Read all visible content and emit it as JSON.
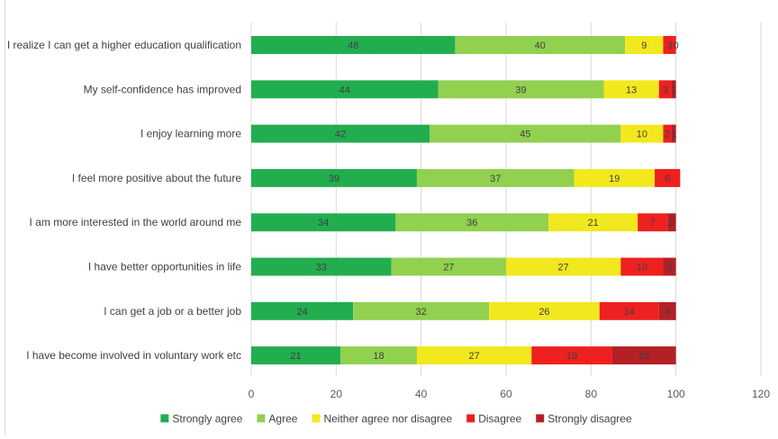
{
  "chart_data": {
    "type": "bar",
    "orientation": "horizontal",
    "stacked": true,
    "categories": [
      "I realize I can get a higher education qualification",
      "My self-confidence has improved",
      "I enjoy learning more",
      "I feel more positive about the future",
      "I am more interested in the world around me",
      "I have better opportunities in life",
      "I can get a job or a better job",
      "I have  become involved in voluntary work etc"
    ],
    "series": [
      {
        "name": "Strongly agree",
        "color": "#22ad4f",
        "values": [
          48,
          44,
          42,
          39,
          34,
          33,
          24,
          21
        ],
        "labels": [
          "48",
          "44",
          "42",
          "39",
          "34",
          "33",
          "24",
          "21"
        ]
      },
      {
        "name": "Agree",
        "color": "#92d050",
        "values": [
          40,
          39,
          45,
          37,
          36,
          27,
          32,
          18
        ],
        "labels": [
          "40",
          "39",
          "45",
          "37",
          "36",
          "27",
          "32",
          "18"
        ]
      },
      {
        "name": "Neither agree nor disagree",
        "color": "#f2e81e",
        "values": [
          9,
          13,
          10,
          19,
          21,
          27,
          26,
          27
        ],
        "labels": [
          "9",
          "13",
          "10",
          "19",
          "21",
          "27",
          "26",
          "27"
        ]
      },
      {
        "name": "Disagree",
        "color": "#ee2020",
        "values": [
          3,
          3,
          2,
          6,
          7,
          10,
          14,
          19
        ],
        "labels": [
          "3",
          "3",
          "2",
          "6",
          "7",
          "10",
          "14",
          "19"
        ]
      },
      {
        "name": "Strongly disagree",
        "color": "#b32025",
        "values": [
          0,
          1,
          1,
          0,
          2,
          3,
          4,
          15
        ],
        "labels": [
          "0",
          "1",
          "1",
          "",
          "2",
          "3",
          "4",
          "15"
        ]
      }
    ],
    "xlim": [
      0,
      120
    ],
    "xticks": [
      "0",
      "20",
      "40",
      "60",
      "80",
      "100",
      "120"
    ],
    "title": "",
    "xlabel": "",
    "ylabel": "",
    "grid": "vertical",
    "legend_position": "bottom"
  }
}
